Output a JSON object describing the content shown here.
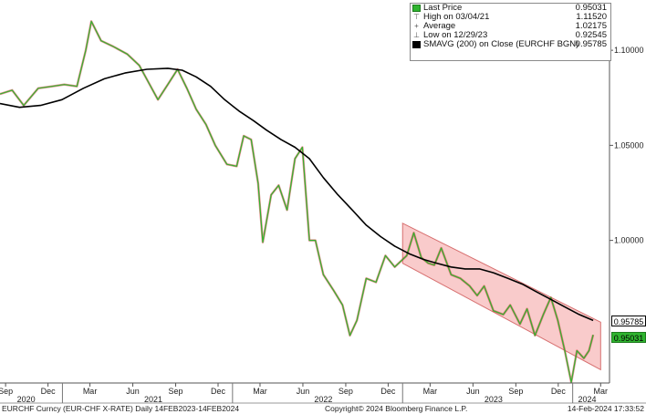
{
  "chart_data": {
    "type": "line",
    "title": "",
    "xlabel": "",
    "ylabel": "",
    "x_range": [
      "2020-08-20",
      "2024-03-20"
    ],
    "ylim": [
      0.925,
      1.125
    ],
    "y_ticks": [
      1.0,
      1.05,
      1.1
    ],
    "y_tick_labels": [
      "1.00000",
      "1.05000",
      "1.10000"
    ],
    "x_ticks": [
      {
        "label": "Sep",
        "date": "2020-09-01"
      },
      {
        "label": "Dec",
        "date": "2020-12-01"
      },
      {
        "label": "Mar",
        "date": "2021-03-01"
      },
      {
        "label": "Jun",
        "date": "2021-06-01"
      },
      {
        "label": "Sep",
        "date": "2021-09-01"
      },
      {
        "label": "Dec",
        "date": "2021-12-01"
      },
      {
        "label": "Mar",
        "date": "2022-03-01"
      },
      {
        "label": "Jun",
        "date": "2022-06-01"
      },
      {
        "label": "Sep",
        "date": "2022-09-01"
      },
      {
        "label": "Dec",
        "date": "2022-12-01"
      },
      {
        "label": "Mar",
        "date": "2023-03-01"
      },
      {
        "label": "Jun",
        "date": "2023-06-01"
      },
      {
        "label": "Sep",
        "date": "2023-09-01"
      },
      {
        "label": "Dec",
        "date": "2023-12-01"
      },
      {
        "label": "Mar",
        "date": "2024-03-01"
      }
    ],
    "year_labels": [
      {
        "label": "2020",
        "date": "2020-10-15"
      },
      {
        "label": "2021",
        "date": "2021-07-15"
      },
      {
        "label": "2022",
        "date": "2022-07-15"
      },
      {
        "label": "2023",
        "date": "2023-07-15"
      },
      {
        "label": "2024",
        "date": "2024-02-01"
      }
    ],
    "year_boundaries": [
      "2021-01-01",
      "2022-01-01",
      "2023-01-01",
      "2024-01-01"
    ],
    "grid": false,
    "legend_position": "top-right",
    "series": [
      {
        "name": "Last Price",
        "color": "#2fb42f",
        "points": [
          [
            "2020-08-20",
            1.077
          ],
          [
            "2020-09-15",
            1.079
          ],
          [
            "2020-10-10",
            1.071
          ],
          [
            "2020-11-10",
            1.08
          ],
          [
            "2020-12-10",
            1.081
          ],
          [
            "2021-01-05",
            1.082
          ],
          [
            "2021-02-01",
            1.081
          ],
          [
            "2021-02-20",
            1.1
          ],
          [
            "2021-03-04",
            1.1152
          ],
          [
            "2021-03-25",
            1.105
          ],
          [
            "2021-04-20",
            1.102
          ],
          [
            "2021-05-20",
            1.098
          ],
          [
            "2021-06-15",
            1.092
          ],
          [
            "2021-07-05",
            1.083
          ],
          [
            "2021-07-25",
            1.074
          ],
          [
            "2021-08-15",
            1.082
          ],
          [
            "2021-09-05",
            1.09
          ],
          [
            "2021-09-25",
            1.08
          ],
          [
            "2021-10-15",
            1.069
          ],
          [
            "2021-11-05",
            1.061
          ],
          [
            "2021-11-25",
            1.05
          ],
          [
            "2021-12-20",
            1.04
          ],
          [
            "2022-01-10",
            1.039
          ],
          [
            "2022-01-25",
            1.055
          ],
          [
            "2022-02-10",
            1.053
          ],
          [
            "2022-02-25",
            1.03
          ],
          [
            "2022-03-07",
            0.999
          ],
          [
            "2022-03-25",
            1.024
          ],
          [
            "2022-04-10",
            1.029
          ],
          [
            "2022-04-28",
            1.016
          ],
          [
            "2022-05-15",
            1.043
          ],
          [
            "2022-05-31",
            1.049
          ],
          [
            "2022-06-15",
            1.0
          ],
          [
            "2022-06-28",
            1.0
          ],
          [
            "2022-07-15",
            0.982
          ],
          [
            "2022-08-05",
            0.974
          ],
          [
            "2022-08-25",
            0.966
          ],
          [
            "2022-09-10",
            0.95
          ],
          [
            "2022-09-25",
            0.958
          ],
          [
            "2022-10-15",
            0.98
          ],
          [
            "2022-11-05",
            0.978
          ],
          [
            "2022-11-25",
            0.992
          ],
          [
            "2022-12-15",
            0.986
          ],
          [
            "2023-01-10",
            0.992
          ],
          [
            "2023-01-25",
            1.004
          ],
          [
            "2023-02-10",
            0.991
          ],
          [
            "2023-02-25",
            0.988
          ],
          [
            "2023-03-10",
            0.987
          ],
          [
            "2023-03-25",
            0.996
          ],
          [
            "2023-04-15",
            0.982
          ],
          [
            "2023-05-05",
            0.98
          ],
          [
            "2023-05-25",
            0.976
          ],
          [
            "2023-06-10",
            0.971
          ],
          [
            "2023-06-25",
            0.976
          ],
          [
            "2023-07-15",
            0.963
          ],
          [
            "2023-08-05",
            0.961
          ],
          [
            "2023-08-20",
            0.966
          ],
          [
            "2023-09-10",
            0.956
          ],
          [
            "2023-09-25",
            0.964
          ],
          [
            "2023-10-12",
            0.95
          ],
          [
            "2023-10-30",
            0.961
          ],
          [
            "2023-11-15",
            0.97
          ],
          [
            "2023-11-30",
            0.958
          ],
          [
            "2023-12-15",
            0.942
          ],
          [
            "2023-12-29",
            0.9254
          ],
          [
            "2024-01-10",
            0.942
          ],
          [
            "2024-01-25",
            0.938
          ],
          [
            "2024-02-05",
            0.942
          ],
          [
            "2024-02-14",
            0.9503
          ]
        ]
      },
      {
        "name": "SMAVG (200)  on Close (EURCHF BGN)",
        "color": "#000000",
        "points": [
          [
            "2020-08-20",
            1.072
          ],
          [
            "2020-10-01",
            1.07
          ],
          [
            "2020-11-15",
            1.071
          ],
          [
            "2020-12-31",
            1.074
          ],
          [
            "2021-02-15",
            1.08
          ],
          [
            "2021-04-01",
            1.085
          ],
          [
            "2021-05-15",
            1.088
          ],
          [
            "2021-07-01",
            1.09
          ],
          [
            "2021-08-15",
            1.0905
          ],
          [
            "2021-09-15",
            1.0895
          ],
          [
            "2021-10-15",
            1.086
          ],
          [
            "2021-11-15",
            1.081
          ],
          [
            "2021-12-15",
            1.074
          ],
          [
            "2022-01-15",
            1.068
          ],
          [
            "2022-02-15",
            1.063
          ],
          [
            "2022-03-15",
            1.058
          ],
          [
            "2022-04-15",
            1.053
          ],
          [
            "2022-05-15",
            1.049
          ],
          [
            "2022-06-15",
            1.043
          ],
          [
            "2022-07-15",
            1.033
          ],
          [
            "2022-08-15",
            1.024
          ],
          [
            "2022-09-15",
            1.016
          ],
          [
            "2022-10-15",
            1.008
          ],
          [
            "2022-11-15",
            1.002
          ],
          [
            "2022-12-15",
            0.997
          ],
          [
            "2023-01-15",
            0.993
          ],
          [
            "2023-02-15",
            0.99
          ],
          [
            "2023-03-15",
            0.988
          ],
          [
            "2023-04-15",
            0.986
          ],
          [
            "2023-05-15",
            0.985
          ],
          [
            "2023-06-15",
            0.985
          ],
          [
            "2023-07-15",
            0.983
          ],
          [
            "2023-08-15",
            0.98
          ],
          [
            "2023-09-15",
            0.977
          ],
          [
            "2023-10-15",
            0.973
          ],
          [
            "2023-11-15",
            0.969
          ],
          [
            "2023-12-15",
            0.965
          ],
          [
            "2024-01-15",
            0.961
          ],
          [
            "2024-02-14",
            0.9579
          ]
        ]
      }
    ],
    "channel": {
      "color": "#f4a0a0",
      "border_color": "#d77070",
      "start": "2023-01-01",
      "end": "2024-03-01",
      "upper": [
        1.009,
        0.957
      ],
      "lower": [
        0.988,
        0.932
      ]
    },
    "last_value_tags": [
      {
        "label": "0.95785",
        "value": 0.95785,
        "style": "black"
      },
      {
        "label": "0.95031",
        "value": 0.95031,
        "style": "green"
      }
    ]
  },
  "legend": {
    "items": [
      {
        "icon": "green-square-icon",
        "label": "Last Price",
        "value": "0.95031"
      },
      {
        "icon": "high-marker-icon",
        "label": "High on 03/04/21",
        "value": "1.11520"
      },
      {
        "icon": "average-marker-icon",
        "label": "Average",
        "value": "1.02175"
      },
      {
        "icon": "low-marker-icon",
        "label": "Low on 12/29/23",
        "value": "0.92545"
      },
      {
        "icon": "black-square-icon",
        "label": "SMAVG (200)  on Close (EURCHF BGN)",
        "value": "0.95785"
      }
    ]
  },
  "footer": {
    "ticker": "EURCHF Curncy (EUR-CHF X-RATE)  Daily 14FEB2023-14FEB2024",
    "copyright": "Copyright© 2024 Bloomberg Finance L.P.",
    "timestamp": "14-Feb-2024 17:33:52"
  }
}
